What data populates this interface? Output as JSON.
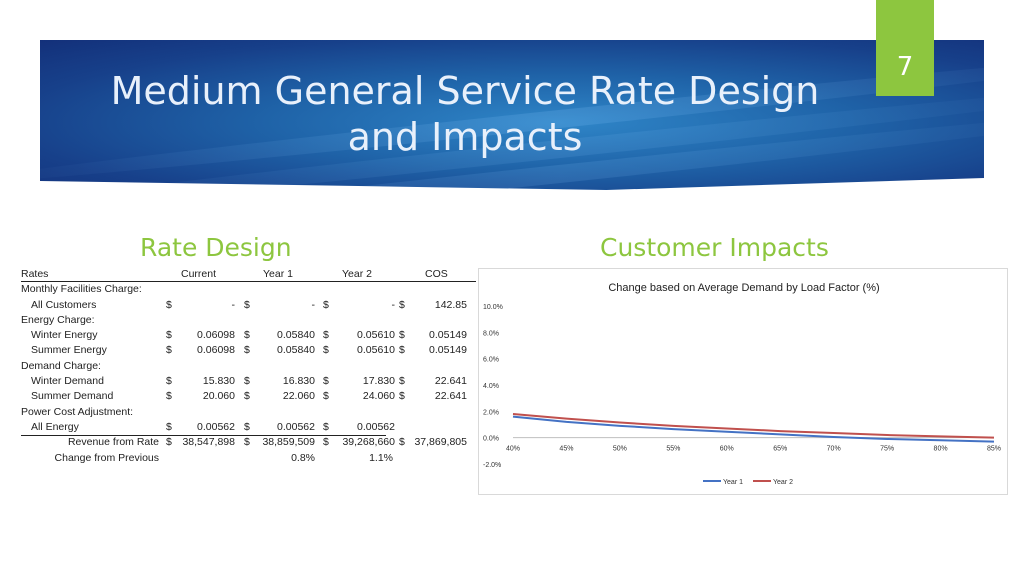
{
  "slide": {
    "title_line1": "Medium General Service Rate Design",
    "title_line2": "and Impacts",
    "number": "7"
  },
  "sections": {
    "rate_design": "Rate Design",
    "customer_impacts": "Customer Impacts"
  },
  "rates_table": {
    "headers": [
      "Rates",
      "Current",
      "Year 1",
      "Year 2",
      "COS"
    ],
    "rows": [
      {
        "label": "Monthly Facilities Charge:",
        "type": "group"
      },
      {
        "label": "All Customers",
        "type": "item",
        "values": [
          "-",
          "-",
          "-",
          "142.85"
        ]
      },
      {
        "label": "Energy Charge:",
        "type": "group"
      },
      {
        "label": "Winter Energy",
        "type": "item",
        "values": [
          "0.06098",
          "0.05840",
          "0.05610",
          "0.05149"
        ]
      },
      {
        "label": "Summer Energy",
        "type": "item",
        "values": [
          "0.06098",
          "0.05840",
          "0.05610",
          "0.05149"
        ]
      },
      {
        "label": "Demand Charge:",
        "type": "group"
      },
      {
        "label": "Winter Demand",
        "type": "item",
        "values": [
          "15.830",
          "16.830",
          "17.830",
          "22.641"
        ]
      },
      {
        "label": "Summer Demand",
        "type": "item",
        "values": [
          "20.060",
          "22.060",
          "24.060",
          "22.641"
        ]
      },
      {
        "label": "Power Cost Adjustment:",
        "type": "group"
      },
      {
        "label": "All Energy",
        "type": "item",
        "values": [
          "0.00562",
          "0.00562",
          "0.00562",
          ""
        ],
        "underline": true
      },
      {
        "label": "Revenue from Rate",
        "type": "total",
        "values": [
          "38,547,898",
          "38,859,509",
          "39,268,660",
          "37,869,805"
        ]
      },
      {
        "label": "Change from Previous",
        "type": "pct",
        "values": [
          "",
          "0.8%",
          "1.1%",
          ""
        ]
      }
    ],
    "currency": "$"
  },
  "chart_data": {
    "type": "line",
    "title": "Change based on Average Demand by Load Factor (%)",
    "x": [
      "40%",
      "45%",
      "50%",
      "55%",
      "60%",
      "65%",
      "70%",
      "75%",
      "80%",
      "85%"
    ],
    "series": [
      {
        "name": "Year 1",
        "color": "#4472c4",
        "values": [
          1.6,
          1.2,
          0.9,
          0.65,
          0.45,
          0.25,
          0.05,
          -0.1,
          -0.2,
          -0.3
        ]
      },
      {
        "name": "Year 2",
        "color": "#c0504d",
        "values": [
          1.8,
          1.45,
          1.15,
          0.9,
          0.7,
          0.5,
          0.35,
          0.2,
          0.1,
          0.0
        ]
      }
    ],
    "y_ticks": [
      "10.0%",
      "8.0%",
      "6.0%",
      "4.0%",
      "2.0%",
      "0.0%",
      "-2.0%"
    ],
    "ylim": [
      -2,
      10
    ],
    "grid": false,
    "legend": "bottom"
  }
}
